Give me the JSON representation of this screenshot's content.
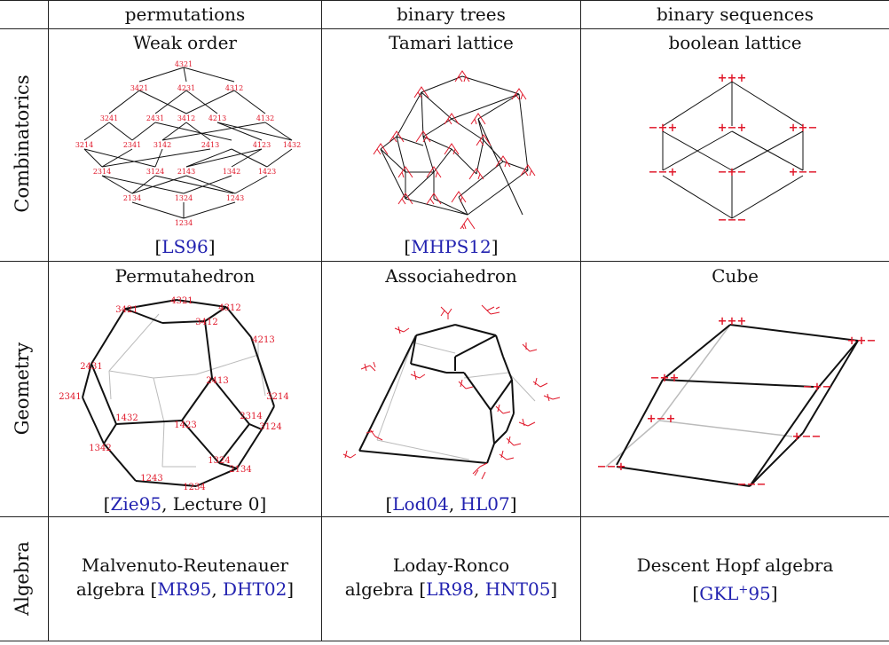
{
  "columns": {
    "permutations": "permutations",
    "binary_trees": "binary trees",
    "binary_sequences": "binary sequences"
  },
  "rows": {
    "combinatorics": "Combinatorics",
    "geometry": "Geometry",
    "algebra": "Algebra"
  },
  "cells": {
    "weak_order": {
      "title": "Weak order",
      "cite": "LS96"
    },
    "tamari": {
      "title": "Tamari lattice",
      "cite": "MHPS12"
    },
    "boolean": {
      "title": "boolean lattice"
    },
    "permutahedron": {
      "title": "Permutahedron",
      "cite_ref": "Zie95",
      "cite_rest": ", Lecture 0"
    },
    "associahedron": {
      "title": "Associahedron",
      "cite_ref1": "Lod04",
      "cite_ref2": "HL07"
    },
    "cube": {
      "title": "Cube"
    },
    "mr_algebra": {
      "line1": "Malvenuto-Reutenauer",
      "line2": "algebra",
      "ref1": "MR95",
      "ref2": "DHT02"
    },
    "lr_algebra": {
      "line1": "Loday-Ronco",
      "line2": "algebra",
      "ref1": "LR98",
      "ref2": "HNT05"
    },
    "descent_algebra": {
      "line1": "Descent Hopf algebra",
      "ref_main": "GKL",
      "ref_sup": "+",
      "ref_end": "95"
    }
  },
  "weak_order_labels": {
    "top": "4321",
    "r2": [
      "3421",
      "4231",
      "4312"
    ],
    "r3": [
      "3241",
      "2431",
      "3412",
      "4213",
      "4132"
    ],
    "r4": [
      "3214",
      "2341",
      "3142",
      "2413",
      "4123",
      "1432"
    ],
    "r5": [
      "2314",
      "3124",
      "2143",
      "1342",
      "1423"
    ],
    "r6": [
      "2134",
      "1324",
      "1243"
    ],
    "bottom": "1234"
  },
  "boolean_labels": {
    "top": "+++",
    "mid_up": [
      "−++",
      "+−+",
      "++−"
    ],
    "mid_down": [
      "−−+",
      "−+−",
      "+−−"
    ],
    "bottom": "−−−"
  },
  "permutahedron_labels": [
    "4321",
    "4312",
    "3421",
    "3412",
    "4213",
    "2431",
    "2413",
    "3214",
    "2341",
    "2314",
    "3124",
    "1432",
    "1423",
    "1342",
    "1324",
    "2134",
    "1243",
    "1234"
  ],
  "cube_labels": [
    "+++",
    "++−",
    "−++",
    "−+−",
    "+−+",
    "+−−",
    "−−+",
    "−−−"
  ],
  "colors": {
    "label": "#e0182a",
    "reference": "#2222b0",
    "ghost_edge": "#bbbbbb"
  }
}
